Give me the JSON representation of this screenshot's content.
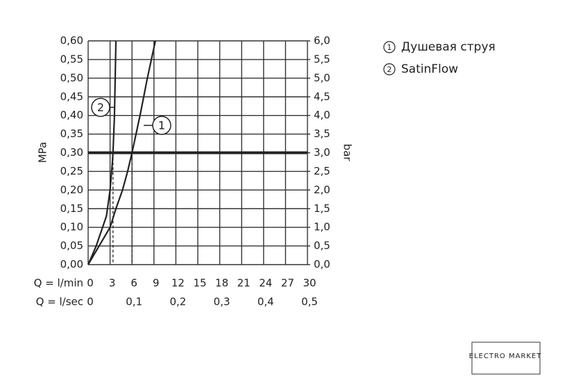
{
  "chart_data": {
    "type": "line",
    "xlabel": "Q = l/min",
    "x2label": "Q = l/sec",
    "ylabel": "MPa",
    "y2label": "bar",
    "xlim": [
      0,
      30
    ],
    "xticks": [
      0,
      3,
      6,
      9,
      12,
      15,
      18,
      21,
      24,
      27,
      30
    ],
    "x2lim": [
      0,
      0.5
    ],
    "x2ticks": [
      0,
      {
        "value": 0.1,
        "label": "0,1"
      },
      {
        "value": 0.2,
        "label": "0,2"
      },
      {
        "value": 0.3,
        "label": "0,3"
      },
      {
        "value": 0.4,
        "label": "0,4"
      },
      {
        "value": 0.5,
        "label": "0,5"
      }
    ],
    "ylim": [
      0,
      0.6
    ],
    "yticks": [
      {
        "value": 0,
        "label": "0,00"
      },
      {
        "value": 0.05,
        "label": "0,05"
      },
      {
        "value": 0.1,
        "label": "0,10"
      },
      {
        "value": 0.15,
        "label": "0,15"
      },
      {
        "value": 0.2,
        "label": "0,20"
      },
      {
        "value": 0.25,
        "label": "0,25"
      },
      {
        "value": 0.3,
        "label": "0,30"
      },
      {
        "value": 0.35,
        "label": "0,35"
      },
      {
        "value": 0.4,
        "label": "0,40"
      },
      {
        "value": 0.45,
        "label": "0,45"
      },
      {
        "value": 0.5,
        "label": "0,50"
      },
      {
        "value": 0.55,
        "label": "0,55"
      },
      {
        "value": 0.6,
        "label": "0,60"
      }
    ],
    "y2lim": [
      0,
      6
    ],
    "y2ticks": [
      {
        "value": 0,
        "label": "0,0"
      },
      {
        "value": 0.5,
        "label": "0,5"
      },
      {
        "value": 1,
        "label": "1,0"
      },
      {
        "value": 1.5,
        "label": "1,5"
      },
      {
        "value": 2,
        "label": "2,0"
      },
      {
        "value": 2.5,
        "label": "2,5"
      },
      {
        "value": 3,
        "label": "3,0"
      },
      {
        "value": 3.5,
        "label": "3,5"
      },
      {
        "value": 4,
        "label": "4,0"
      },
      {
        "value": 4.5,
        "label": "4,5"
      },
      {
        "value": 5,
        "label": "5,0"
      },
      {
        "value": 5.5,
        "label": "5,5"
      },
      {
        "value": 6,
        "label": "6,0"
      }
    ],
    "grid": true,
    "threshold": 0.3,
    "series": [
      {
        "name": "Душевая струя",
        "marker": "1",
        "color": "#222222",
        "x": [
          0,
          1.5,
          3,
          3.8,
          4.7,
          5.4,
          6,
          7.1,
          8.1,
          9.2
        ],
        "values": [
          0,
          0.05,
          0.1,
          0.15,
          0.2,
          0.25,
          0.3,
          0.4,
          0.5,
          0.6
        ]
      },
      {
        "name": "SatinFlow",
        "marker": "2",
        "color": "#222222",
        "x": [
          0,
          1.1,
          2.5,
          3.0,
          3.3,
          3.4,
          3.6,
          3.7,
          3.8
        ],
        "values": [
          0,
          0.05,
          0.13,
          0.2,
          0.27,
          0.3,
          0.4,
          0.5,
          0.6
        ]
      }
    ],
    "watermark": "ELECTRO MARKET"
  }
}
